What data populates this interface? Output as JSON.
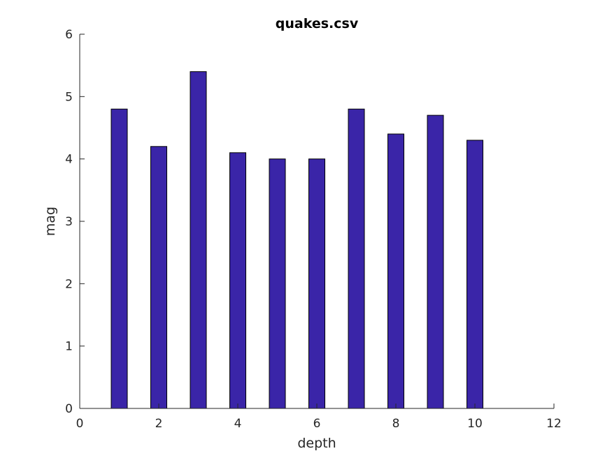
{
  "chart_data": {
    "type": "bar",
    "title": "quakes.csv",
    "xlabel": "depth",
    "ylabel": "mag",
    "x": [
      1,
      2,
      3,
      4,
      5,
      6,
      7,
      8,
      9,
      10
    ],
    "values": [
      4.8,
      4.2,
      5.4,
      4.1,
      4.0,
      4.0,
      4.8,
      4.4,
      4.7,
      4.3
    ],
    "xlim": [
      0,
      12
    ],
    "ylim": [
      0,
      6
    ],
    "xticks": [
      "0",
      "2",
      "4",
      "6",
      "8",
      "10",
      "12"
    ],
    "yticks": [
      "0",
      "1",
      "2",
      "3",
      "4",
      "5",
      "6"
    ],
    "grid": false,
    "bar_color": "#3a25a8",
    "bar_edge_color": "#000000"
  }
}
